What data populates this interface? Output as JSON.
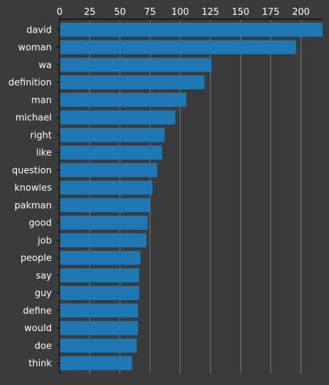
{
  "colors": {
    "background": "#3b3b3b",
    "bar": "#1f77b4",
    "text": "#ffffff",
    "axis": "#000000",
    "grid": "#8a8a8a"
  },
  "chart_data": {
    "type": "bar",
    "orientation": "horizontal",
    "categories": [
      "david",
      "woman",
      "wa",
      "definition",
      "man",
      "michael",
      "right",
      "like",
      "question",
      "knowles",
      "pakman",
      "good",
      "job",
      "people",
      "say",
      "guy",
      "define",
      "would",
      "doe",
      "think"
    ],
    "values": [
      218,
      196,
      126,
      120,
      105,
      96,
      87,
      85,
      81,
      77,
      75,
      73,
      72,
      67,
      66,
      66,
      65,
      65,
      64,
      60
    ],
    "xticks": [
      0,
      25,
      50,
      75,
      100,
      125,
      150,
      175,
      200
    ],
    "xlim": [
      0,
      218
    ],
    "x_axis_position": "top",
    "grid": "vertical",
    "title": "",
    "xlabel": "",
    "ylabel": ""
  }
}
